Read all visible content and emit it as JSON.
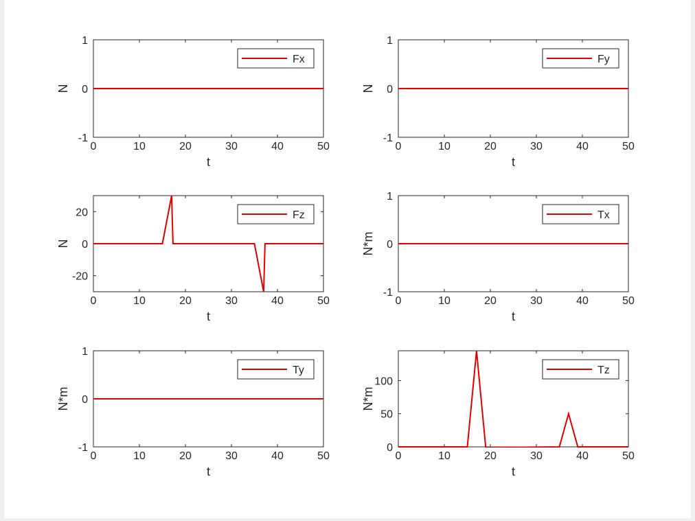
{
  "figure": {
    "background": "#ffffff",
    "line_color": "#e00000"
  },
  "chart_data": [
    {
      "type": "line",
      "legend": "Fx",
      "legend_position": "top-right",
      "xlabel": "t",
      "ylabel": "N",
      "xlim": [
        0,
        50
      ],
      "ylim": [
        -1,
        1
      ],
      "xticks": [
        0,
        10,
        20,
        30,
        40,
        50
      ],
      "yticks": [
        -1,
        0,
        1
      ],
      "ytick_labels": [
        "-1",
        "0",
        "1"
      ],
      "series": [
        {
          "name": "Fx",
          "x": [
            0,
            50
          ],
          "y": [
            0,
            0
          ]
        }
      ]
    },
    {
      "type": "line",
      "legend": "Fy",
      "legend_position": "top-right",
      "xlabel": "t",
      "ylabel": "N",
      "xlim": [
        0,
        50
      ],
      "ylim": [
        -1,
        1
      ],
      "xticks": [
        0,
        10,
        20,
        30,
        40,
        50
      ],
      "yticks": [
        -1,
        0,
        1
      ],
      "ytick_labels": [
        "-1",
        "0",
        "1"
      ],
      "series": [
        {
          "name": "Fy",
          "x": [
            0,
            50
          ],
          "y": [
            0,
            0
          ]
        }
      ]
    },
    {
      "type": "line",
      "legend": "Fz",
      "legend_position": "top-right",
      "xlabel": "t",
      "ylabel": "N",
      "xlim": [
        0,
        50
      ],
      "ylim": [
        -30,
        30
      ],
      "xticks": [
        0,
        10,
        20,
        30,
        40,
        50
      ],
      "yticks": [
        -20,
        0,
        20
      ],
      "ytick_labels": [
        "-20",
        "0",
        "20"
      ],
      "series": [
        {
          "name": "Fz",
          "x": [
            0,
            15,
            17,
            17.3,
            35,
            37,
            37.3,
            50
          ],
          "y": [
            0,
            0,
            30,
            0,
            0,
            -30,
            0,
            0
          ]
        }
      ]
    },
    {
      "type": "line",
      "legend": "Tx",
      "legend_position": "top-right",
      "xlabel": "t",
      "ylabel": "N*m",
      "xlim": [
        0,
        50
      ],
      "ylim": [
        -1,
        1
      ],
      "xticks": [
        0,
        10,
        20,
        30,
        40,
        50
      ],
      "yticks": [
        -1,
        0,
        1
      ],
      "ytick_labels": [
        "-1",
        "0",
        "1"
      ],
      "series": [
        {
          "name": "Tx",
          "x": [
            0,
            50
          ],
          "y": [
            0,
            0
          ]
        }
      ]
    },
    {
      "type": "line",
      "legend": "Ty",
      "legend_position": "top-right",
      "xlabel": "t",
      "ylabel": "N*m",
      "xlim": [
        0,
        50
      ],
      "ylim": [
        -1,
        1
      ],
      "xticks": [
        0,
        10,
        20,
        30,
        40,
        50
      ],
      "yticks": [
        -1,
        0,
        1
      ],
      "ytick_labels": [
        "-1",
        "0",
        "1"
      ],
      "series": [
        {
          "name": "Ty",
          "x": [
            0,
            50
          ],
          "y": [
            0,
            0
          ]
        }
      ]
    },
    {
      "type": "line",
      "legend": "Tz",
      "legend_position": "top-right",
      "xlabel": "t",
      "ylabel": "N*m",
      "xlim": [
        0,
        50
      ],
      "ylim": [
        0,
        145
      ],
      "xticks": [
        0,
        10,
        20,
        30,
        40,
        50
      ],
      "yticks": [
        0,
        50,
        100
      ],
      "ytick_labels": [
        "0",
        "50",
        "100"
      ],
      "series": [
        {
          "name": "Tz",
          "x": [
            0,
            15,
            17,
            19,
            35,
            37,
            39,
            50
          ],
          "y": [
            0,
            0,
            145,
            -1,
            0,
            50,
            0,
            0
          ]
        }
      ]
    }
  ]
}
